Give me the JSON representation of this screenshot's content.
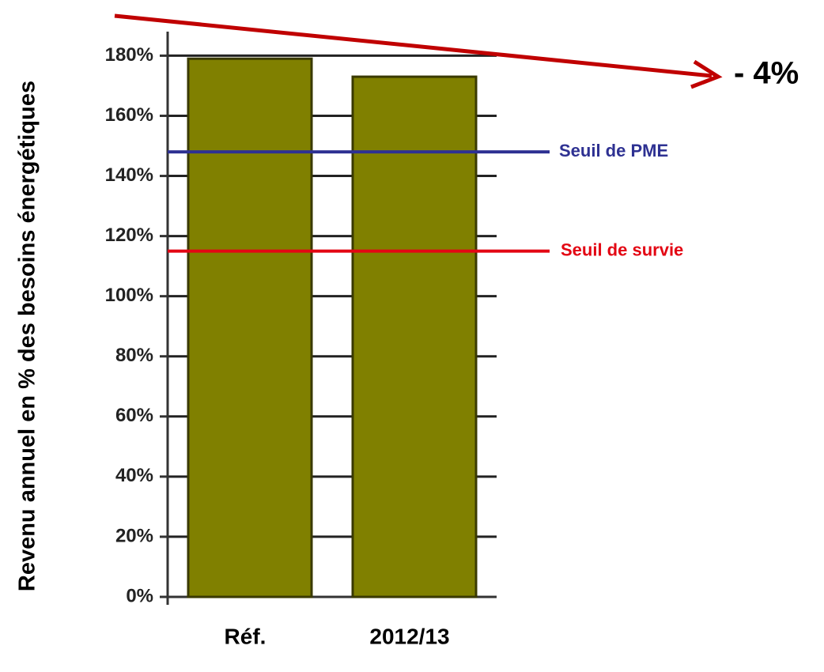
{
  "chart_data": {
    "type": "bar",
    "y_label": "Revenu annuel en %  des besoins énergétiques",
    "categories": [
      "Réf.",
      "2012/13"
    ],
    "values": [
      179,
      173
    ],
    "color": "#808000",
    "ylim": [
      0,
      188
    ],
    "yticks": [
      {
        "value": 0,
        "label": "0%"
      },
      {
        "value": 20,
        "label": "20%"
      },
      {
        "value": 40,
        "label": "40%"
      },
      {
        "value": 60,
        "label": "60%"
      },
      {
        "value": 80,
        "label": "80%"
      },
      {
        "value": 100,
        "label": "100%"
      },
      {
        "value": 120,
        "label": "120%"
      },
      {
        "value": 140,
        "label": "140%"
      },
      {
        "value": 160,
        "label": "160%"
      },
      {
        "value": 180,
        "label": "180%"
      }
    ],
    "grid": true,
    "reference_lines": [
      {
        "value": 148,
        "label": "Seuil de PME",
        "color": "#2e3192"
      },
      {
        "value": 115,
        "label": "Seuil de survie",
        "color": "#e30613"
      }
    ],
    "annotation": {
      "text": "- 4%",
      "color": "#c00000"
    }
  }
}
